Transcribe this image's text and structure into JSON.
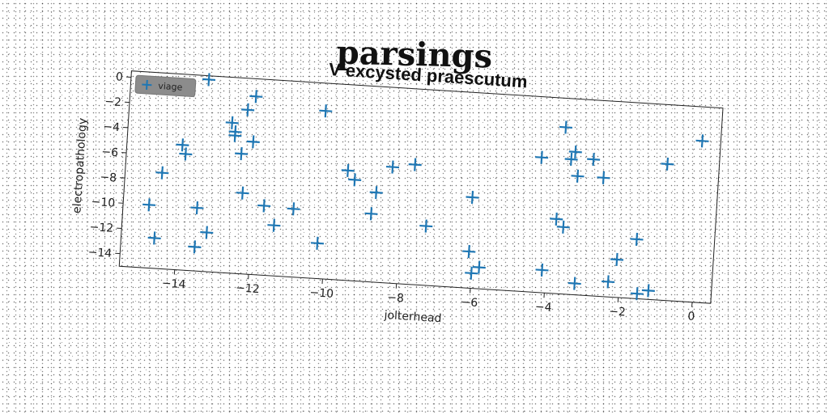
{
  "page": {
    "title": "parsings"
  },
  "colors": {
    "marker": "#1f77b4",
    "legend_bg": "#8c8c8c"
  },
  "chart_data": {
    "type": "scatter",
    "title": "V excysted praescutum",
    "xlabel": "jolterhead",
    "ylabel": "electropathology",
    "xlim": [
      -15.5,
      0.5
    ],
    "ylim": [
      -15,
      0.5
    ],
    "xticks": [
      -14,
      -12,
      -10,
      -8,
      -6,
      -4,
      -2,
      0
    ],
    "yticks": [
      0,
      -2,
      -4,
      -6,
      -8,
      -10,
      -12,
      -14
    ],
    "grid": false,
    "legend_position": "top-left",
    "series": [
      {
        "name": "viage",
        "marker": "plus",
        "x": [
          -13.4,
          -14.8,
          -14.5,
          -14.6,
          -14.0,
          -13.9,
          -13.5,
          -13.5,
          -13.2,
          -12.7,
          -12.6,
          -12.6,
          -12.3,
          -12.1,
          -12.3,
          -12.1,
          -12.4,
          -11.7,
          -11.4,
          -10.9,
          -10.2,
          -10.2,
          -9.5,
          -9.3,
          -8.8,
          -8.7,
          -8.3,
          -7.7,
          -7.3,
          -6.1,
          -6.1,
          -6.0,
          -5.8,
          -4.3,
          -4.1,
          -3.8,
          -3.7,
          -3.6,
          -3.4,
          -3.5,
          -3.3,
          -3.2,
          -2.9,
          -2.6,
          -2.3,
          -2.1,
          -1.6,
          -1.5,
          -1.2,
          -0.9,
          0.0
        ],
        "y": [
          0.2,
          -10.0,
          -7.4,
          -12.6,
          -5.1,
          -5.8,
          -10.0,
          -13.1,
          -11.9,
          -3.1,
          -3.8,
          -4.1,
          -2.0,
          -0.9,
          -8.6,
          -4.5,
          -5.5,
          -9.5,
          -11.0,
          -9.6,
          -1.7,
          -12.2,
          -6.3,
          -7.0,
          -9.6,
          -7.9,
          -5.8,
          -5.5,
          -10.3,
          -7.8,
          -12.1,
          -13.8,
          -13.3,
          -4.3,
          -13.2,
          -9.1,
          -1.8,
          -9.7,
          -3.7,
          -4.3,
          -5.6,
          -14.1,
          -4.2,
          -5.6,
          -13.8,
          -12.0,
          -10.3,
          -14.6,
          -14.3,
          -4.2,
          -2.2
        ]
      }
    ]
  }
}
